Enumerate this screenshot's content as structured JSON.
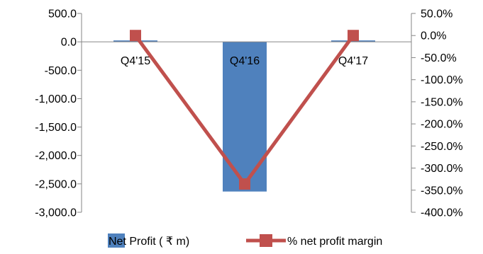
{
  "chart_data": {
    "type": "bar",
    "categories": [
      "Q4'15",
      "Q4'16",
      "Q4'17"
    ],
    "series": [
      {
        "name": "Net Profit ( ₹ m)",
        "type": "bar",
        "axis": "left",
        "color": "#4F81BD",
        "values": [
          25,
          -2635,
          25
        ]
      },
      {
        "name": "% net profit margin",
        "type": "line",
        "axis": "right",
        "color": "#C0504D",
        "marker": "square",
        "values": [
          0.0,
          -336.0,
          0.0
        ]
      }
    ],
    "y_left": {
      "ylim": [
        -3000,
        500
      ],
      "ticks": [
        500,
        0,
        -500,
        -1000,
        -1500,
        -2000,
        -2500,
        -3000
      ],
      "tick_labels": [
        "500.0",
        "0.0",
        "-500.0",
        "-1,000.0",
        "-1,500.0",
        "-2,000.0",
        "-2,500.0",
        "-3,000.0"
      ]
    },
    "y_right": {
      "ylim": [
        -400,
        50
      ],
      "ticks": [
        50,
        0,
        -50,
        -100,
        -150,
        -200,
        -250,
        -300,
        -350,
        -400
      ],
      "tick_labels": [
        "50.0%",
        "0.0%",
        "-50.0%",
        "-100.0%",
        "-150.0%",
        "-200.0%",
        "-250.0%",
        "-300.0%",
        "-350.0%",
        "-400.0%"
      ]
    },
    "grid": false,
    "legend_position": "bottom"
  }
}
